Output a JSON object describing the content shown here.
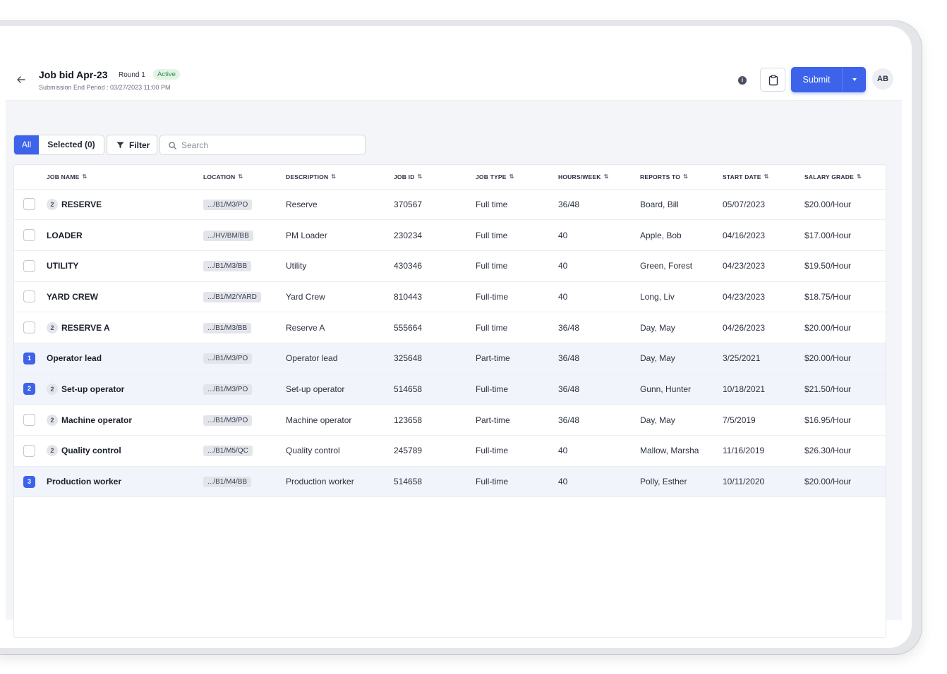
{
  "header": {
    "title": "Job bid Apr-23",
    "round": "Round 1",
    "status": "Active",
    "subtitle": "Submission End Period : 03/27/2023 11:00 PM",
    "submit_label": "Submit",
    "avatar_initials": "AB"
  },
  "toolbar": {
    "all_label": "All",
    "selected_label": "Selected (0)",
    "filter_label": "Filter",
    "search_placeholder": "Search"
  },
  "columns": [
    "JOB NAME",
    "LOCATION",
    "DESCRIPTION",
    "JOB ID",
    "JOB TYPE",
    "HOURS/WEEK",
    "REPORTS TO",
    "START DATE",
    "SALARY GRADE"
  ],
  "rows": [
    {
      "rank": "",
      "count": "2",
      "name": "RESERVE",
      "location": ".../B1/M3/PO",
      "description": "Reserve",
      "job_id": "370567",
      "job_type": "Full time",
      "hours": "36/48",
      "reports_to": "Board, Bill",
      "start_date": "05/07/2023",
      "salary": "$20.00/Hour"
    },
    {
      "rank": "",
      "count": "",
      "name": "LOADER",
      "location": ".../HV/BM/BB",
      "description": "PM Loader",
      "job_id": "230234",
      "job_type": "Full time",
      "hours": "40",
      "reports_to": "Apple, Bob",
      "start_date": "04/16/2023",
      "salary": "$17.00/Hour"
    },
    {
      "rank": "",
      "count": "",
      "name": "UTILITY",
      "location": ".../B1/M3/BB",
      "description": "Utility",
      "job_id": "430346",
      "job_type": "Full time",
      "hours": "40",
      "reports_to": "Green, Forest",
      "start_date": "04/23/2023",
      "salary": "$19.50/Hour"
    },
    {
      "rank": "",
      "count": "",
      "name": "YARD CREW",
      "location": ".../B1/M2/YARD",
      "description": "Yard Crew",
      "job_id": "810443",
      "job_type": "Full-time",
      "hours": "40",
      "reports_to": "Long, Liv",
      "start_date": "04/23/2023",
      "salary": "$18.75/Hour"
    },
    {
      "rank": "",
      "count": "2",
      "name": "RESERVE A",
      "location": ".../B1/M3/BB",
      "description": "Reserve A",
      "job_id": "555664",
      "job_type": "Full time",
      "hours": "36/48",
      "reports_to": "Day, May",
      "start_date": "04/26/2023",
      "salary": "$20.00/Hour"
    },
    {
      "rank": "1",
      "count": "",
      "name": "Operator lead",
      "location": ".../B1/M3/PO",
      "description": "Operator lead",
      "job_id": "325648",
      "job_type": "Part-time",
      "hours": "36/48",
      "reports_to": "Day, May",
      "start_date": "3/25/2021",
      "salary": "$20.00/Hour"
    },
    {
      "rank": "2",
      "count": "2",
      "name": "Set-up operator",
      "location": ".../B1/M3/PO",
      "description": "Set-up operator",
      "job_id": "514658",
      "job_type": "Full-time",
      "hours": "36/48",
      "reports_to": "Gunn, Hunter",
      "start_date": "10/18/2021",
      "salary": "$21.50/Hour"
    },
    {
      "rank": "",
      "count": "2",
      "name": "Machine operator",
      "location": ".../B1/M3/PO",
      "description": "Machine operator",
      "job_id": "123658",
      "job_type": "Part-time",
      "hours": "36/48",
      "reports_to": "Day, May",
      "start_date": "7/5/2019",
      "salary": "$16.95/Hour"
    },
    {
      "rank": "",
      "count": "2",
      "name": "Quality control",
      "location": ".../B1/M5/QC",
      "description": "Quality control",
      "job_id": "245789",
      "job_type": "Full-time",
      "hours": "40",
      "reports_to": "Mallow, Marsha",
      "start_date": "11/16/2019",
      "salary": "$26.30/Hour"
    },
    {
      "rank": "3",
      "count": "",
      "name": "Production worker",
      "location": ".../B1/M4/BB",
      "description": "Production worker",
      "job_id": "514658",
      "job_type": "Full-time",
      "hours": "40",
      "reports_to": "Polly, Esther",
      "start_date": "10/11/2020",
      "salary": "$20.00/Hour"
    }
  ],
  "colors": {
    "accent": "#3d63ea",
    "active_badge_bg": "#e2f4e6",
    "active_badge_text": "#2f8a4a",
    "selected_row_bg": "#f1f4fb"
  },
  "icons": [
    "back-arrow-icon",
    "info-icon",
    "clipboard-icon",
    "chevron-down-icon",
    "filter-icon",
    "search-icon",
    "sort-icon"
  ]
}
